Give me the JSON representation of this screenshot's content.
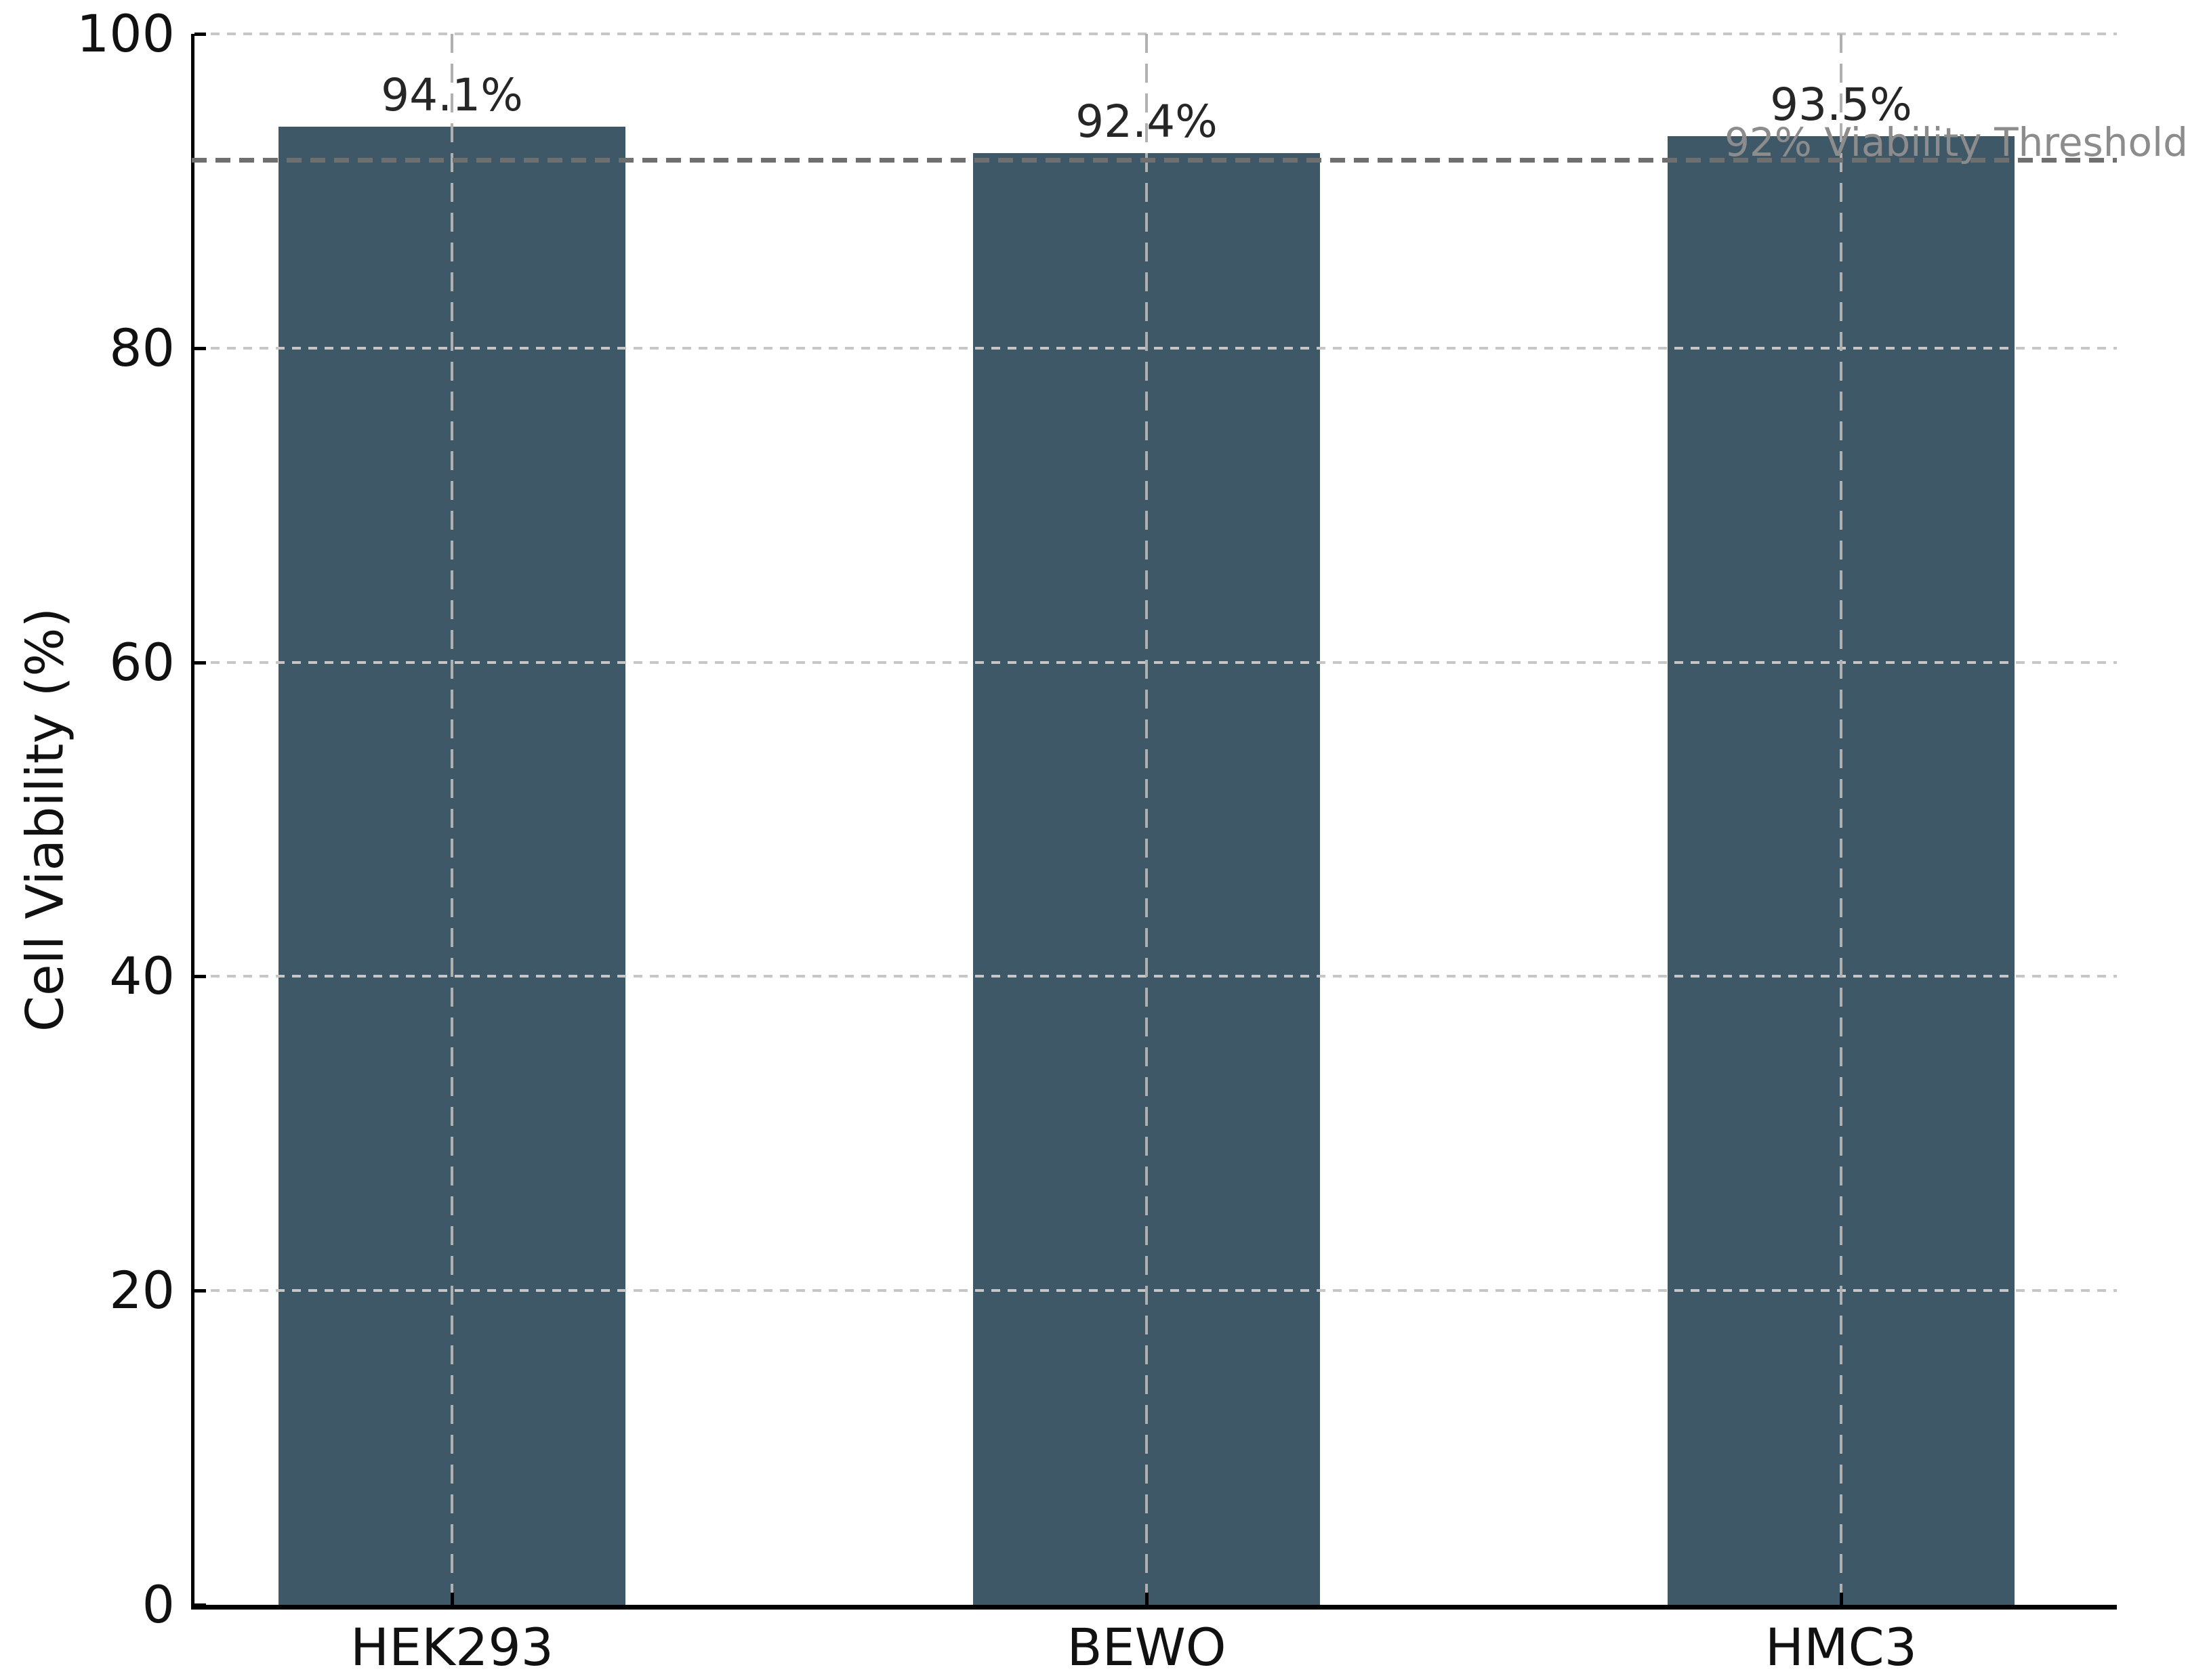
{
  "chart_data": {
    "type": "bar",
    "title": "",
    "xlabel": "",
    "ylabel": "Cell Viability (%)",
    "categories": [
      "HEK293",
      "BEWO",
      "HMC3"
    ],
    "values": [
      94.1,
      92.4,
      93.5
    ],
    "value_labels": [
      "94.1%",
      "92.4%",
      "93.5%"
    ],
    "ylim": [
      0,
      100
    ],
    "yticks": [
      0,
      20,
      40,
      60,
      80,
      100
    ],
    "ytick_labels": [
      "0",
      "20",
      "40",
      "60",
      "80",
      "100"
    ],
    "grid": true,
    "grid_style": "dashed",
    "legend": "none",
    "bar_color": "#3e5868",
    "annotations": [
      {
        "type": "hline",
        "y": 92,
        "label": "92% Viability Threshold",
        "style": "dashed",
        "line_color": "#6f6f6f",
        "label_color": "#8c8c8c"
      }
    ]
  },
  "colors": {
    "background": "#ffffff",
    "axis": "#000000",
    "hgrid": "#c6c6c6",
    "vgrid": "#b0b0b0",
    "tick_label": "#111111",
    "value_label": "#262626"
  }
}
